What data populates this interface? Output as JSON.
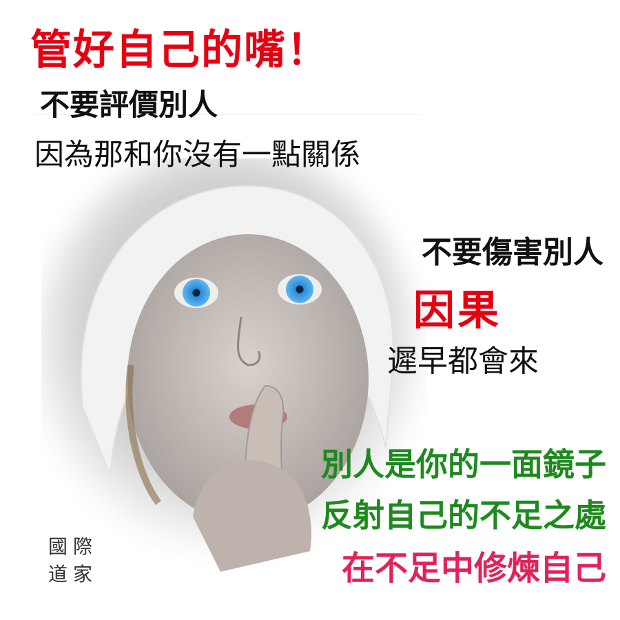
{
  "lines": {
    "headline": "管好自己的嘴！",
    "line2": "不要評價別人",
    "line3": "因為那和你沒有一點關係",
    "line4": "不要傷害別人",
    "line5": "因果",
    "line6": "遲早都會來",
    "line7": "別人是你的一面鏡子",
    "line8": "反射自己的不足之處",
    "line9": "在不足中修煉自己"
  },
  "seal": [
    "國",
    "際",
    "道",
    "家"
  ],
  "colors": {
    "red": "#e60012",
    "green": "#1e8a1e",
    "pink": "#e0245a",
    "black": "#111111"
  }
}
